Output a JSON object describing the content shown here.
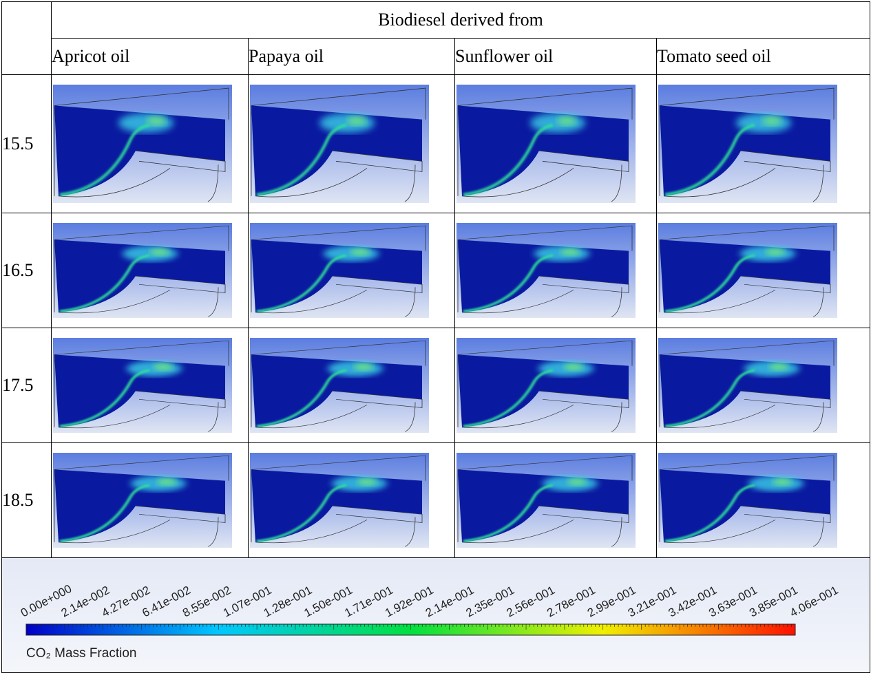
{
  "table": {
    "header": "Biodiesel derived from",
    "columns": [
      "Apricot oil",
      "Papaya oil",
      "Sunflower oil",
      "Tomato seed oil"
    ],
    "rows": [
      "15.5",
      "16.5",
      "17.5",
      "18.5"
    ]
  },
  "legend": {
    "ticks": [
      "0.00e+000",
      "2.14e-002",
      "4.27e-002",
      "6.41e-002",
      "8.55e-002",
      "1.07e-001",
      "1.28e-001",
      "1.50e-001",
      "1.71e-001",
      "1.92e-001",
      "2.14e-001",
      "2.35e-001",
      "2.56e-001",
      "2.78e-001",
      "2.99e-001",
      "3.21e-001",
      "3.42e-001",
      "3.63e-001",
      "3.85e-001",
      "4.06e-001"
    ],
    "title": "CO₂ Mass Fraction"
  }
}
